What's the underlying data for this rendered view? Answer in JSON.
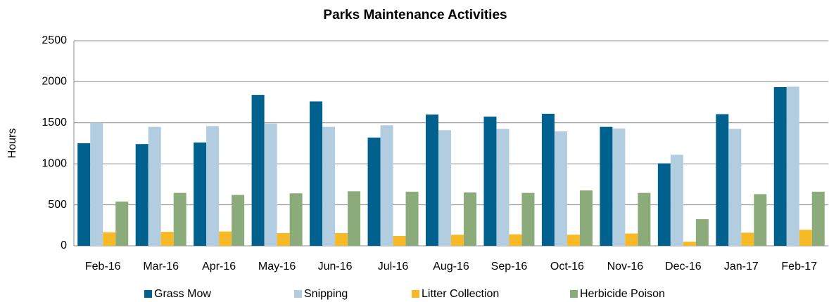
{
  "chart_data": {
    "type": "bar",
    "title": "Parks Maintenance Activities",
    "y_label": "Hours",
    "categories": [
      "Feb-16",
      "Mar-16",
      "Apr-16",
      "May-16",
      "Jun-16",
      "Jul-16",
      "Aug-16",
      "Sep-16",
      "Oct-16",
      "Nov-16",
      "Dec-16",
      "Jan-17",
      "Feb-17"
    ],
    "series": [
      {
        "name": "Grass Mow",
        "color": "#00618e",
        "values": [
          1250,
          1240,
          1260,
          1840,
          1760,
          1320,
          1600,
          1575,
          1610,
          1450,
          1005,
          1605,
          1935
        ]
      },
      {
        "name": "Snipping",
        "color": "#b3cde0",
        "values": [
          1500,
          1450,
          1460,
          1490,
          1450,
          1470,
          1410,
          1425,
          1395,
          1430,
          1110,
          1425,
          1940
        ]
      },
      {
        "name": "Litter Collection",
        "color": "#f7b926",
        "values": [
          165,
          170,
          175,
          155,
          155,
          120,
          135,
          140,
          135,
          150,
          50,
          160,
          195
        ]
      },
      {
        "name": "Herbicide Poison",
        "color": "#8bac7a",
        "values": [
          540,
          645,
          620,
          640,
          665,
          660,
          650,
          645,
          675,
          645,
          325,
          630,
          660
        ]
      }
    ],
    "ylim": [
      0,
      2500
    ],
    "yticks": [
      0,
      500,
      1000,
      1500,
      2000,
      2500
    ],
    "grid": true,
    "legend": "bottom"
  }
}
